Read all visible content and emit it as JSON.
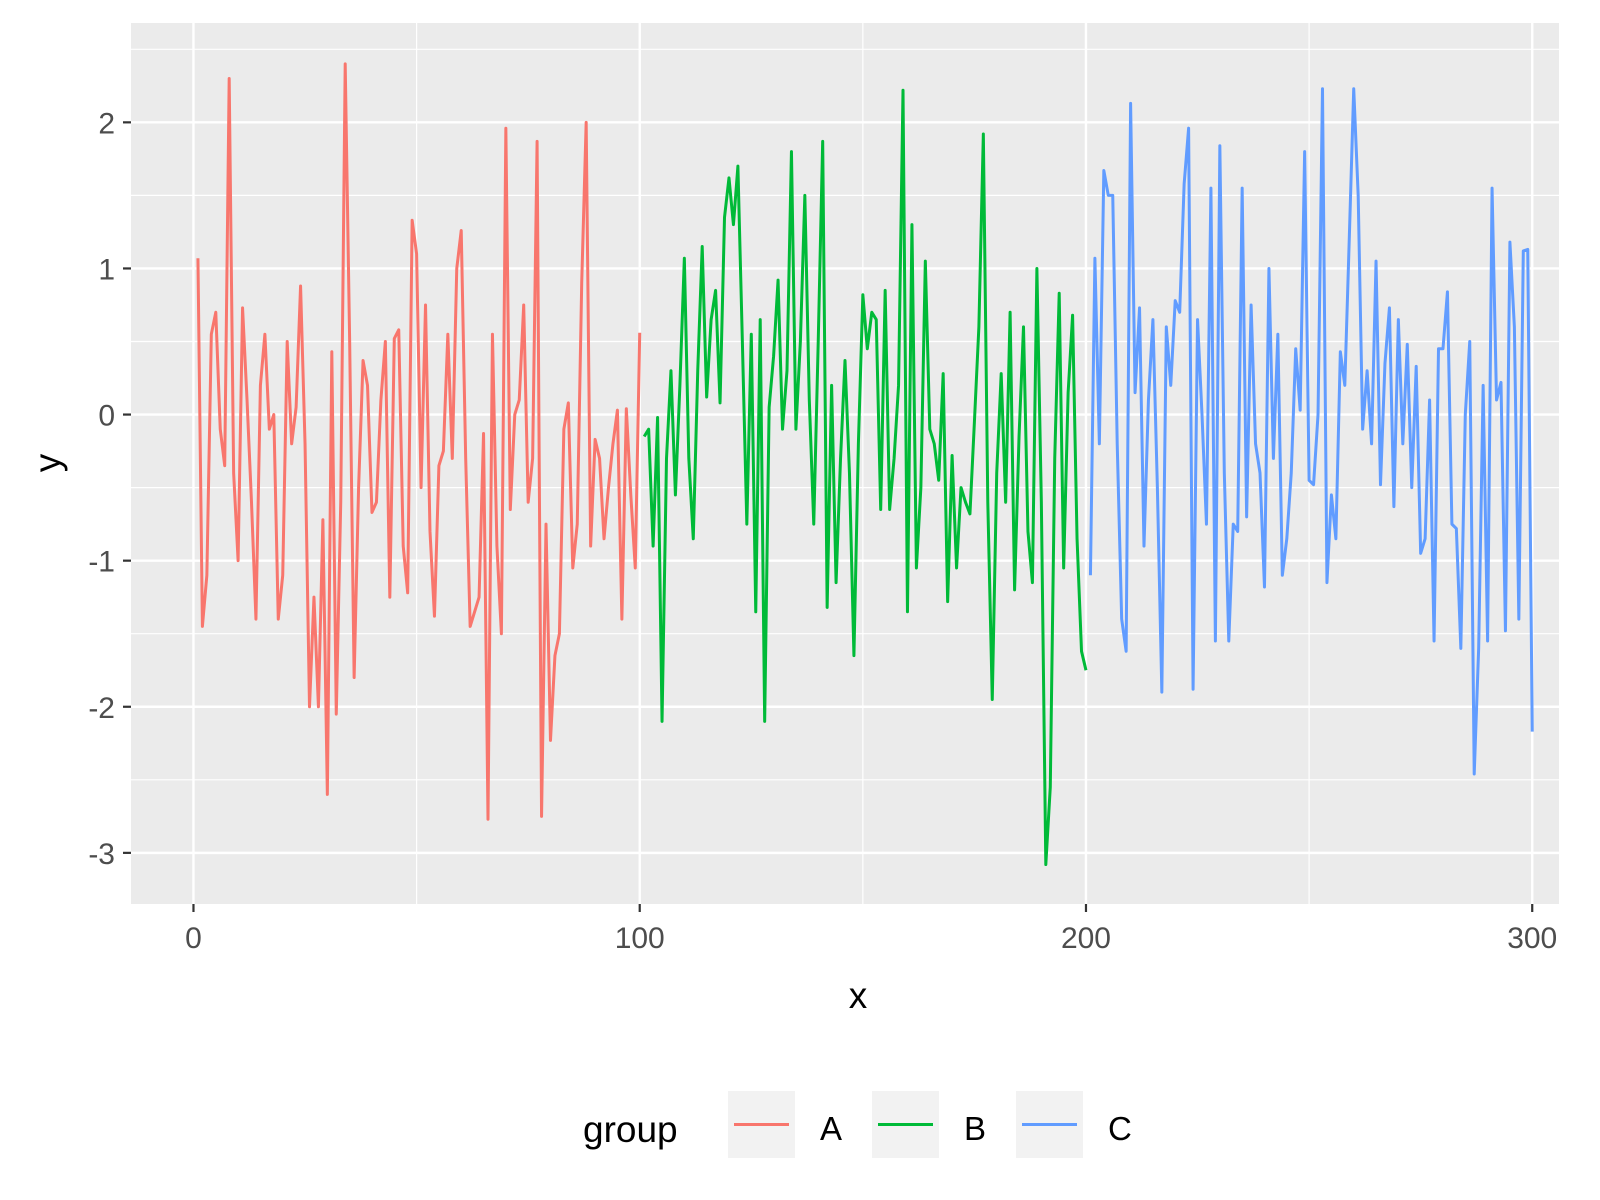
{
  "chart_data": {
    "type": "line",
    "x_label": "x",
    "y_label": "y",
    "legend_title": "group",
    "xlim": [
      -14,
      306
    ],
    "ylim": [
      -3.35,
      2.68
    ],
    "xticks": [
      0,
      100,
      200,
      300
    ],
    "yticks": [
      -3,
      -2,
      -1,
      0,
      1,
      2
    ],
    "x_minor_ticks": [
      50,
      150,
      250
    ],
    "y_minor_ticks": [
      -2.5,
      -1.5,
      -0.5,
      0.5,
      1.5,
      2.5
    ],
    "grid": true,
    "legend_position": "bottom",
    "series": [
      {
        "name": "A",
        "color": "#F8766D",
        "x": [
          1,
          2,
          3,
          4,
          5,
          6,
          7,
          8,
          9,
          10,
          11,
          12,
          13,
          14,
          15,
          16,
          17,
          18,
          19,
          20,
          21,
          22,
          23,
          24,
          25,
          26,
          27,
          28,
          29,
          30,
          31,
          32,
          33,
          34,
          35,
          36,
          37,
          38,
          39,
          40,
          41,
          42,
          43,
          44,
          45,
          46,
          47,
          48,
          49,
          50,
          51,
          52,
          53,
          54,
          55,
          56,
          57,
          58,
          59,
          60,
          61,
          62,
          63,
          64,
          65,
          66,
          67,
          68,
          69,
          70,
          71,
          72,
          73,
          74,
          75,
          76,
          77,
          78,
          79,
          80,
          81,
          82,
          83,
          84,
          85,
          86,
          87,
          88,
          89,
          90,
          91,
          92,
          93,
          94,
          95,
          96,
          97,
          98,
          99,
          100
        ],
        "values": [
          1.07,
          -1.45,
          -1.1,
          0.55,
          0.7,
          -0.1,
          -0.35,
          2.3,
          -0.4,
          -1.0,
          0.73,
          0.1,
          -0.6,
          -1.4,
          0.2,
          0.55,
          -0.1,
          0.0,
          -1.4,
          -1.1,
          0.5,
          -0.2,
          0.05,
          0.88,
          -0.2,
          -2.0,
          -1.25,
          -2.0,
          -0.72,
          -2.6,
          0.43,
          -2.05,
          -0.6,
          2.4,
          0.5,
          -1.8,
          -0.5,
          0.37,
          0.2,
          -0.67,
          -0.6,
          0.1,
          0.5,
          -1.25,
          0.52,
          0.58,
          -0.9,
          -1.22,
          1.33,
          1.1,
          -0.5,
          0.75,
          -0.8,
          -1.38,
          -0.35,
          -0.25,
          0.55,
          -0.3,
          1.0,
          1.26,
          -0.3,
          -1.45,
          -1.35,
          -1.25,
          -0.13,
          -2.77,
          0.55,
          -0.9,
          -1.5,
          1.96,
          -0.65,
          0.0,
          0.1,
          0.75,
          -0.6,
          -0.3,
          1.87,
          -2.75,
          -0.75,
          -2.23,
          -1.65,
          -1.5,
          -0.1,
          0.08,
          -1.05,
          -0.75,
          0.9,
          2.0,
          -0.9,
          -0.17,
          -0.3,
          -0.85,
          -0.5,
          -0.2,
          0.03,
          -1.4,
          0.04,
          -0.55,
          -1.05,
          0.56
        ]
      },
      {
        "name": "B",
        "color": "#00BA38",
        "x": [
          101,
          102,
          103,
          104,
          105,
          106,
          107,
          108,
          109,
          110,
          111,
          112,
          113,
          114,
          115,
          116,
          117,
          118,
          119,
          120,
          121,
          122,
          123,
          124,
          125,
          126,
          127,
          128,
          129,
          130,
          131,
          132,
          133,
          134,
          135,
          136,
          137,
          138,
          139,
          140,
          141,
          142,
          143,
          144,
          145,
          146,
          147,
          148,
          149,
          150,
          151,
          152,
          153,
          154,
          155,
          156,
          157,
          158,
          159,
          160,
          161,
          162,
          163,
          164,
          165,
          166,
          167,
          168,
          169,
          170,
          171,
          172,
          173,
          174,
          175,
          176,
          177,
          178,
          179,
          180,
          181,
          182,
          183,
          184,
          185,
          186,
          187,
          188,
          189,
          190,
          191,
          192,
          193,
          194,
          195,
          196,
          197,
          198,
          199,
          200
        ],
        "values": [
          -0.15,
          -0.1,
          -0.9,
          -0.02,
          -2.1,
          -0.3,
          0.3,
          -0.55,
          0.2,
          1.07,
          -0.3,
          -0.85,
          0.3,
          1.15,
          0.12,
          0.65,
          0.85,
          0.08,
          1.35,
          1.62,
          1.3,
          1.7,
          0.5,
          -0.75,
          0.55,
          -1.35,
          0.65,
          -2.1,
          0.05,
          0.4,
          0.92,
          -0.1,
          0.3,
          1.8,
          -0.1,
          0.5,
          1.5,
          0.1,
          -0.75,
          0.5,
          1.87,
          -1.32,
          0.2,
          -1.15,
          -0.3,
          0.37,
          -0.4,
          -1.65,
          -0.2,
          0.82,
          0.45,
          0.7,
          0.65,
          -0.65,
          0.85,
          -0.65,
          -0.3,
          0.2,
          2.22,
          -1.35,
          1.3,
          -1.05,
          -0.5,
          1.05,
          -0.1,
          -0.2,
          -0.45,
          0.28,
          -1.28,
          -0.28,
          -1.05,
          -0.5,
          -0.6,
          -0.68,
          -0.05,
          0.6,
          1.92,
          -0.6,
          -1.95,
          -0.4,
          0.28,
          -0.6,
          0.7,
          -1.2,
          -0.15,
          0.6,
          -0.8,
          -1.15,
          1.0,
          -0.6,
          -3.08,
          -2.55,
          -0.3,
          0.83,
          -1.05,
          0.15,
          0.68,
          -0.85,
          -1.62,
          -1.75
        ]
      },
      {
        "name": "C",
        "color": "#619CFF",
        "x": [
          201,
          202,
          203,
          204,
          205,
          206,
          207,
          208,
          209,
          210,
          211,
          212,
          213,
          214,
          215,
          216,
          217,
          218,
          219,
          220,
          221,
          222,
          223,
          224,
          225,
          226,
          227,
          228,
          229,
          230,
          231,
          232,
          233,
          234,
          235,
          236,
          237,
          238,
          239,
          240,
          241,
          242,
          243,
          244,
          245,
          246,
          247,
          248,
          249,
          250,
          251,
          252,
          253,
          254,
          255,
          256,
          257,
          258,
          259,
          260,
          261,
          262,
          263,
          264,
          265,
          266,
          267,
          268,
          269,
          270,
          271,
          272,
          273,
          274,
          275,
          276,
          277,
          278,
          279,
          280,
          281,
          282,
          283,
          284,
          285,
          286,
          287,
          288,
          289,
          290,
          291,
          292,
          293,
          294,
          295,
          296,
          297,
          298,
          299,
          300
        ],
        "values": [
          -1.1,
          1.07,
          -0.2,
          1.67,
          1.5,
          1.5,
          -0.2,
          -1.4,
          -1.62,
          2.13,
          0.15,
          0.73,
          -0.9,
          0.1,
          0.65,
          -0.5,
          -1.9,
          0.6,
          0.2,
          0.78,
          0.7,
          1.58,
          1.96,
          -1.88,
          0.65,
          0.0,
          -0.75,
          1.55,
          -1.55,
          1.84,
          -0.4,
          -1.55,
          -0.75,
          -0.8,
          1.55,
          -0.7,
          0.75,
          -0.2,
          -0.4,
          -1.18,
          1.0,
          -0.3,
          0.55,
          -1.1,
          -0.85,
          -0.4,
          0.45,
          0.03,
          1.8,
          -0.45,
          -0.48,
          0.0,
          2.23,
          -1.15,
          -0.55,
          -0.85,
          0.43,
          0.2,
          1.2,
          2.23,
          1.5,
          -0.1,
          0.3,
          -0.2,
          1.05,
          -0.48,
          0.35,
          0.73,
          -0.63,
          0.65,
          -0.2,
          0.48,
          -0.5,
          0.33,
          -0.95,
          -0.85,
          0.1,
          -1.55,
          0.45,
          0.45,
          0.84,
          -0.75,
          -0.78,
          -1.6,
          0.0,
          0.5,
          -2.46,
          -1.6,
          0.2,
          -1.55,
          1.55,
          0.1,
          0.22,
          -1.48,
          1.18,
          0.6,
          -1.4,
          1.12,
          1.13,
          -2.17
        ]
      }
    ]
  }
}
